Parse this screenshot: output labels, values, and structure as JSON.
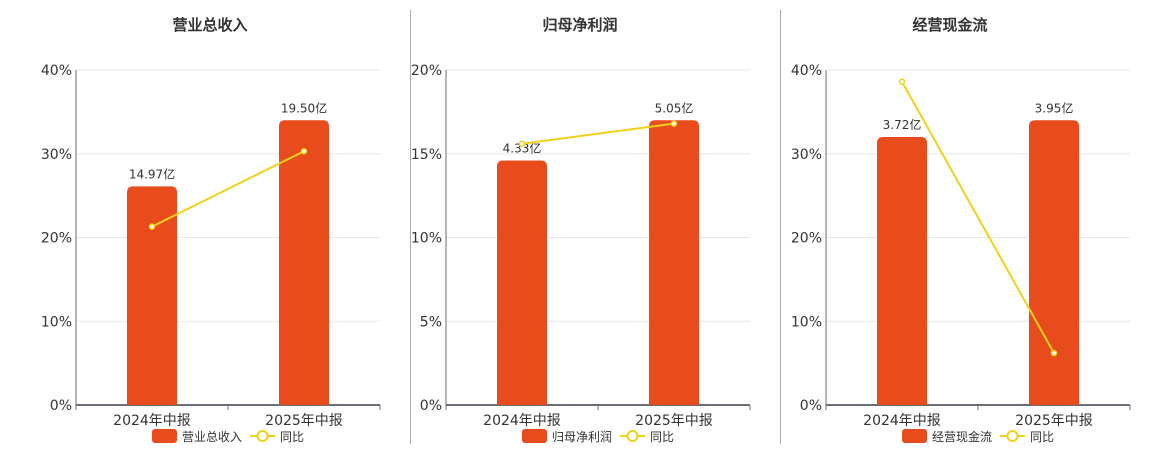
{
  "colors": {
    "bar": "#E84C1C",
    "line": "#F2D11B",
    "grid": "#E3E7EE",
    "axis": "#6B6E78",
    "text": "#333333"
  },
  "chart_data": [
    {
      "type": "bar",
      "title": "营业总收入",
      "categories": [
        "2024年中报",
        "2025年中报"
      ],
      "series": [
        {
          "name": "营业总收入",
          "type": "bar",
          "labels": [
            "14.97亿",
            "19.50亿"
          ],
          "values_pct_axis": [
            26.1,
            34.0
          ]
        },
        {
          "name": "同比",
          "type": "line",
          "values": [
            21.3,
            30.3
          ]
        }
      ],
      "yticks": [
        "0%",
        "10%",
        "20%",
        "30%",
        "40%"
      ],
      "ylim": [
        0,
        40
      ],
      "legend": [
        "营业总收入",
        "同比"
      ]
    },
    {
      "type": "bar",
      "title": "归母净利润",
      "categories": [
        "2024年中报",
        "2025年中报"
      ],
      "series": [
        {
          "name": "归母净利润",
          "type": "bar",
          "labels": [
            "4.33亿",
            "5.05亿"
          ],
          "values_pct_axis": [
            14.6,
            17.0
          ]
        },
        {
          "name": "同比",
          "type": "line",
          "values": [
            15.6,
            16.8
          ]
        }
      ],
      "yticks": [
        "0%",
        "5%",
        "10%",
        "15%",
        "20%"
      ],
      "ylim": [
        0,
        20
      ],
      "legend": [
        "归母净利润",
        "同比"
      ]
    },
    {
      "type": "bar",
      "title": "经营现金流",
      "categories": [
        "2024年中报",
        "2025年中报"
      ],
      "series": [
        {
          "name": "经营现金流",
          "type": "bar",
          "labels": [
            "3.72亿",
            "3.95亿"
          ],
          "values_pct_axis": [
            32.0,
            34.0
          ]
        },
        {
          "name": "同比",
          "type": "line",
          "values": [
            38.6,
            6.2
          ]
        }
      ],
      "yticks": [
        "0%",
        "10%",
        "20%",
        "30%",
        "40%"
      ],
      "ylim": [
        0,
        40
      ],
      "legend": [
        "经营现金流",
        "同比"
      ]
    }
  ]
}
